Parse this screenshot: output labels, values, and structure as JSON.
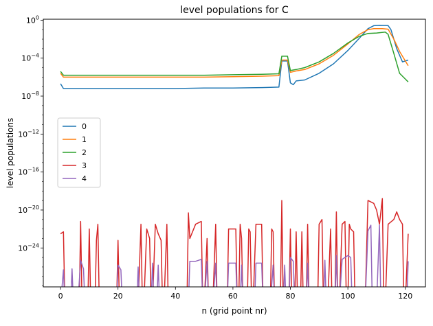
{
  "chart_data": {
    "type": "line",
    "title": "level populations for C",
    "xlabel": "n (grid point nr)",
    "ylabel": "level populations",
    "xscale": "linear",
    "yscale": "log",
    "xlim": [
      -6,
      127
    ],
    "ylim_log10": [
      -28.1,
      0.1
    ],
    "xticks": [
      0,
      20,
      40,
      60,
      80,
      100,
      120
    ],
    "xtick_labels": [
      "0",
      "20",
      "40",
      "60",
      "80",
      "100",
      "120"
    ],
    "yticks_log10": [
      0,
      -4,
      -8,
      -12,
      -16,
      -20,
      -24
    ],
    "ytick_mantissa": "10",
    "ytick_exponents": [
      "0",
      "−4",
      "−8",
      "−12",
      "−16",
      "−20",
      "−24"
    ],
    "grid": false,
    "legend_position": "center-left",
    "series": [
      {
        "name": "0",
        "color": "#1f77b4",
        "points_log10": [
          [
            0,
            -6.7
          ],
          [
            1,
            -7.2
          ],
          [
            10,
            -7.2
          ],
          [
            20,
            -7.2
          ],
          [
            30,
            -7.2
          ],
          [
            40,
            -7.2
          ],
          [
            50,
            -7.15
          ],
          [
            60,
            -7.15
          ],
          [
            70,
            -7.1
          ],
          [
            76,
            -7.05
          ],
          [
            77,
            -4.3
          ],
          [
            79,
            -4.3
          ],
          [
            80,
            -6.6
          ],
          [
            81,
            -6.8
          ],
          [
            82,
            -6.4
          ],
          [
            85,
            -6.3
          ],
          [
            90,
            -5.6
          ],
          [
            95,
            -4.6
          ],
          [
            100,
            -3.2
          ],
          [
            104,
            -1.9
          ],
          [
            107,
            -0.9
          ],
          [
            109,
            -0.58
          ],
          [
            111,
            -0.55
          ],
          [
            114,
            -0.57
          ],
          [
            115,
            -1.0
          ],
          [
            117,
            -3.0
          ],
          [
            119,
            -4.4
          ],
          [
            121,
            -4.2
          ]
        ]
      },
      {
        "name": "1",
        "color": "#ff7f0e",
        "points_log10": [
          [
            0,
            -5.6
          ],
          [
            1,
            -6.0
          ],
          [
            10,
            -6.0
          ],
          [
            20,
            -6.0
          ],
          [
            30,
            -6.0
          ],
          [
            40,
            -6.0
          ],
          [
            50,
            -6.0
          ],
          [
            60,
            -5.95
          ],
          [
            70,
            -5.9
          ],
          [
            76,
            -5.85
          ],
          [
            77,
            -4.2
          ],
          [
            79,
            -4.2
          ],
          [
            80,
            -5.5
          ],
          [
            82,
            -5.35
          ],
          [
            85,
            -5.2
          ],
          [
            90,
            -4.6
          ],
          [
            95,
            -3.7
          ],
          [
            100,
            -2.5
          ],
          [
            104,
            -1.5
          ],
          [
            107,
            -1.0
          ],
          [
            109,
            -0.9
          ],
          [
            112,
            -0.9
          ],
          [
            114,
            -0.95
          ],
          [
            116,
            -2.0
          ],
          [
            118,
            -3.3
          ],
          [
            121,
            -4.8
          ]
        ]
      },
      {
        "name": "2",
        "color": "#2ca02c",
        "points_log10": [
          [
            0,
            -5.4
          ],
          [
            1,
            -5.8
          ],
          [
            10,
            -5.8
          ],
          [
            20,
            -5.8
          ],
          [
            30,
            -5.8
          ],
          [
            40,
            -5.8
          ],
          [
            50,
            -5.8
          ],
          [
            60,
            -5.75
          ],
          [
            70,
            -5.7
          ],
          [
            76,
            -5.65
          ],
          [
            77,
            -3.8
          ],
          [
            79,
            -3.8
          ],
          [
            80,
            -5.3
          ],
          [
            82,
            -5.2
          ],
          [
            85,
            -5.0
          ],
          [
            90,
            -4.4
          ],
          [
            95,
            -3.5
          ],
          [
            100,
            -2.4
          ],
          [
            104,
            -1.7
          ],
          [
            107,
            -1.4
          ],
          [
            110,
            -1.35
          ],
          [
            113,
            -1.25
          ],
          [
            114,
            -1.5
          ],
          [
            116,
            -3.5
          ],
          [
            118,
            -5.6
          ],
          [
            120,
            -6.2
          ],
          [
            121,
            -6.5
          ]
        ]
      },
      {
        "name": "3",
        "color": "#d62728",
        "points_log10": [
          [
            0,
            -22.5
          ],
          [
            1,
            -22.3
          ],
          [
            1.5,
            -30
          ],
          [
            6.5,
            -30
          ],
          [
            7,
            -21.2
          ],
          [
            7.5,
            -30
          ],
          [
            9.5,
            -30
          ],
          [
            10,
            -22.0
          ],
          [
            10.5,
            -30
          ],
          [
            12,
            -30
          ],
          [
            12.5,
            -23.2
          ],
          [
            13,
            -21.5
          ],
          [
            13.5,
            -30
          ],
          [
            19.5,
            -30
          ],
          [
            20,
            -23.2
          ],
          [
            20.5,
            -30
          ],
          [
            27,
            -30
          ],
          [
            28,
            -21.5
          ],
          [
            28.5,
            -30
          ],
          [
            29,
            -30
          ],
          [
            30,
            -22.0
          ],
          [
            31,
            -23.0
          ],
          [
            31.5,
            -30
          ],
          [
            32,
            -30
          ],
          [
            33,
            -21.5
          ],
          [
            34,
            -22.5
          ],
          [
            35,
            -23.2
          ],
          [
            35.5,
            -30
          ],
          [
            36,
            -30
          ],
          [
            37,
            -21.5
          ],
          [
            37.5,
            -30
          ],
          [
            44,
            -30
          ],
          [
            44.5,
            -20.3
          ],
          [
            45,
            -23.0
          ],
          [
            47,
            -21.5
          ],
          [
            49,
            -21.2
          ],
          [
            49.5,
            -30
          ],
          [
            50,
            -30
          ],
          [
            51,
            -23.0
          ],
          [
            51.5,
            -30
          ],
          [
            53,
            -30
          ],
          [
            54,
            -21.5
          ],
          [
            54.5,
            -30
          ],
          [
            58,
            -30
          ],
          [
            58.5,
            -22.0
          ],
          [
            61,
            -22.0
          ],
          [
            61.5,
            -30
          ],
          [
            62,
            -30
          ],
          [
            62.5,
            -21.5
          ],
          [
            63,
            -23.0
          ],
          [
            63.5,
            -30
          ],
          [
            65,
            -30
          ],
          [
            65.5,
            -22.0
          ],
          [
            66,
            -22.3
          ],
          [
            66.5,
            -30
          ],
          [
            67,
            -30
          ],
          [
            68,
            -21.5
          ],
          [
            70,
            -21.5
          ],
          [
            70.5,
            -30
          ],
          [
            73,
            -30
          ],
          [
            73.5,
            -22.0
          ],
          [
            74,
            -22.3
          ],
          [
            74.5,
            -30
          ],
          [
            76.5,
            -30
          ],
          [
            77,
            -19.0
          ],
          [
            77.5,
            -30
          ],
          [
            79.5,
            -30
          ],
          [
            80,
            -22.0
          ],
          [
            80.5,
            -30
          ],
          [
            81.5,
            -30
          ],
          [
            82,
            -22.3
          ],
          [
            82.5,
            -30
          ],
          [
            83.5,
            -30
          ],
          [
            84,
            -22.3
          ],
          [
            84.5,
            -30
          ],
          [
            85.5,
            -30
          ],
          [
            86,
            -21.5
          ],
          [
            86.5,
            -30
          ],
          [
            89.5,
            -30
          ],
          [
            90,
            -21.5
          ],
          [
            91,
            -21.0
          ],
          [
            91.5,
            -30
          ],
          [
            93,
            -30
          ],
          [
            94,
            -22.0
          ],
          [
            94.5,
            -30
          ],
          [
            95.5,
            -30
          ],
          [
            96,
            -20.2
          ],
          [
            96.5,
            -30
          ],
          [
            97,
            -30
          ],
          [
            98,
            -21.5
          ],
          [
            99,
            -21.2
          ],
          [
            99.5,
            -30
          ],
          [
            100,
            -30
          ],
          [
            100.5,
            -21.5
          ],
          [
            101,
            -22.0
          ],
          [
            102,
            -22.3
          ],
          [
            102.5,
            -30
          ],
          [
            106,
            -30
          ],
          [
            107,
            -19.0
          ],
          [
            109,
            -19.3
          ],
          [
            110,
            -20.0
          ],
          [
            111,
            -21.5
          ],
          [
            112,
            -18.8
          ],
          [
            112.5,
            -30
          ],
          [
            113,
            -30
          ],
          [
            114,
            -21.5
          ],
          [
            116,
            -21.0
          ],
          [
            117,
            -20.2
          ],
          [
            118,
            -21.0
          ],
          [
            119,
            -21.5
          ],
          [
            119.5,
            -30
          ],
          [
            120,
            -30
          ],
          [
            121,
            -22.5
          ]
        ]
      },
      {
        "name": "4",
        "color": "#9467bd",
        "points_log10": [
          [
            0,
            -30
          ],
          [
            1,
            -26.3
          ],
          [
            1.5,
            -30
          ],
          [
            3.5,
            -30
          ],
          [
            4,
            -26.2
          ],
          [
            4.5,
            -30
          ],
          [
            6,
            -30
          ],
          [
            7,
            -25.3
          ],
          [
            8,
            -26.2
          ],
          [
            8.5,
            -30
          ],
          [
            19.5,
            -30
          ],
          [
            20,
            -25.8
          ],
          [
            21,
            -26.3
          ],
          [
            21.5,
            -30
          ],
          [
            26.5,
            -30
          ],
          [
            27,
            -26.0
          ],
          [
            27.5,
            -30
          ],
          [
            31.5,
            -30
          ],
          [
            32,
            -25.6
          ],
          [
            32.5,
            -30
          ],
          [
            33.5,
            -30
          ],
          [
            34,
            -25.8
          ],
          [
            34.5,
            -30
          ],
          [
            44.5,
            -30
          ],
          [
            45,
            -25.4
          ],
          [
            47,
            -25.4
          ],
          [
            49,
            -25.2
          ],
          [
            49.5,
            -30
          ],
          [
            50,
            -30
          ],
          [
            51,
            -25.4
          ],
          [
            51.5,
            -30
          ],
          [
            53,
            -30
          ],
          [
            54,
            -25.6
          ],
          [
            54.5,
            -30
          ],
          [
            58,
            -30
          ],
          [
            58.5,
            -25.6
          ],
          [
            61,
            -25.6
          ],
          [
            61.5,
            -30
          ],
          [
            62.5,
            -30
          ],
          [
            63,
            -25.8
          ],
          [
            63.5,
            -30
          ],
          [
            67.5,
            -30
          ],
          [
            68,
            -25.6
          ],
          [
            70,
            -25.6
          ],
          [
            70.5,
            -30
          ],
          [
            73,
            -30
          ],
          [
            74,
            -25.8
          ],
          [
            74.5,
            -30
          ],
          [
            77.5,
            -30
          ],
          [
            78,
            -25.8
          ],
          [
            78.5,
            -30
          ],
          [
            79.5,
            -30
          ],
          [
            80,
            -25.0
          ],
          [
            81,
            -25.4
          ],
          [
            81.5,
            -30
          ],
          [
            85.5,
            -30
          ],
          [
            86,
            -25.6
          ],
          [
            86.5,
            -30
          ],
          [
            91.5,
            -30
          ],
          [
            92,
            -25.3
          ],
          [
            92.5,
            -30
          ],
          [
            95.5,
            -30
          ],
          [
            96,
            -24.8
          ],
          [
            96.5,
            -30
          ],
          [
            97,
            -30
          ],
          [
            98,
            -25.2
          ],
          [
            99,
            -25.0
          ],
          [
            100,
            -24.8
          ],
          [
            101,
            -25.0
          ],
          [
            101.5,
            -30
          ],
          [
            106,
            -30
          ],
          [
            107,
            -22.2
          ],
          [
            108,
            -21.6
          ],
          [
            108.5,
            -30
          ],
          [
            110,
            -30
          ],
          [
            111,
            -21.6
          ],
          [
            111.5,
            -30
          ],
          [
            120.5,
            -30
          ],
          [
            121,
            -25.4
          ]
        ]
      }
    ]
  }
}
